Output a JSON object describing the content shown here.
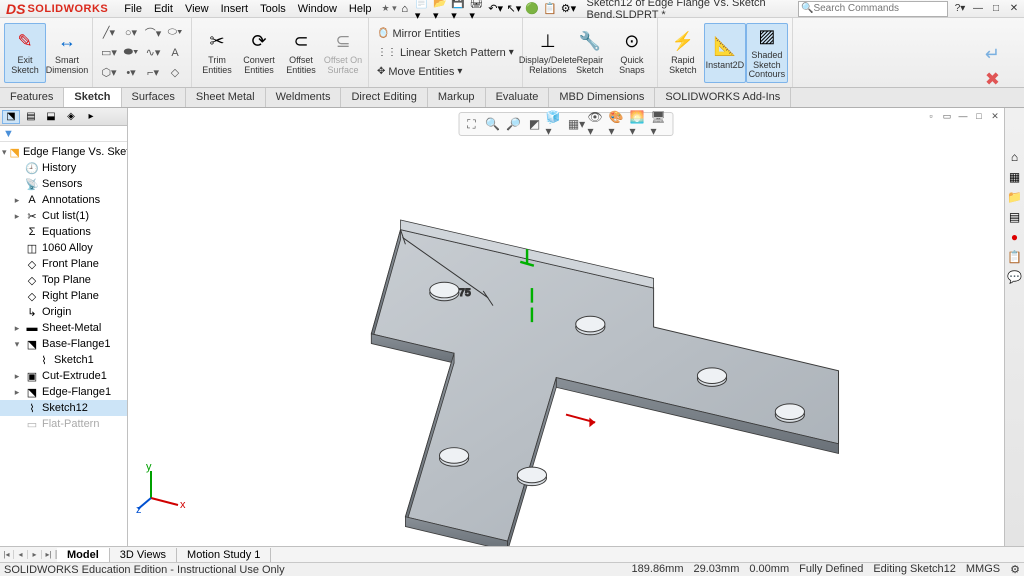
{
  "app": {
    "logo_symbol": "DS",
    "logo_text": "SOLIDWORKS"
  },
  "menu": [
    "File",
    "Edit",
    "View",
    "Insert",
    "Tools",
    "Window",
    "Help"
  ],
  "doc_title": "Sketch12 of Edge Flange Vs. Sketch Bend.SLDPRT *",
  "search_placeholder": "Search Commands",
  "ribbon": {
    "exit_sketch": "Exit\nSketch",
    "smart_dim": "Smart\nDimension",
    "trim": "Trim\nEntities",
    "convert": "Convert\nEntities",
    "offset": "Offset\nEntities",
    "offset_surf": "Offset\nOn\nSurface",
    "mirror": "Mirror Entities",
    "linear": "Linear Sketch Pattern",
    "move": "Move Entities",
    "display": "Display/Delete\nRelations",
    "repair": "Repair\nSketch",
    "quick": "Quick\nSnaps",
    "rapid": "Rapid\nSketch",
    "instant": "Instant2D",
    "shaded": "Shaded\nSketch\nContours"
  },
  "tabs": [
    "Features",
    "Sketch",
    "Surfaces",
    "Sheet Metal",
    "Weldments",
    "Direct Editing",
    "Markup",
    "Evaluate",
    "MBD Dimensions",
    "SOLIDWORKS Add-Ins"
  ],
  "active_tab": "Sketch",
  "tree": {
    "root": "Edge Flange Vs. Sketch Ben",
    "nodes": [
      {
        "label": "History",
        "ico": "🕘",
        "l": 1
      },
      {
        "label": "Sensors",
        "ico": "📡",
        "l": 1
      },
      {
        "label": "Annotations",
        "ico": "A",
        "l": 1,
        "exp": "▸"
      },
      {
        "label": "Cut list(1)",
        "ico": "✂",
        "l": 1,
        "exp": "▸"
      },
      {
        "label": "Equations",
        "ico": "Σ",
        "l": 1
      },
      {
        "label": "1060 Alloy",
        "ico": "◫",
        "l": 1
      },
      {
        "label": "Front Plane",
        "ico": "◇",
        "l": 1
      },
      {
        "label": "Top Plane",
        "ico": "◇",
        "l": 1
      },
      {
        "label": "Right Plane",
        "ico": "◇",
        "l": 1
      },
      {
        "label": "Origin",
        "ico": "↳",
        "l": 1
      },
      {
        "label": "Sheet-Metal",
        "ico": "▬",
        "l": 1,
        "exp": "▸"
      },
      {
        "label": "Base-Flange1",
        "ico": "⬔",
        "l": 1,
        "exp": "▾"
      },
      {
        "label": "Sketch1",
        "ico": "⌇",
        "l": 2
      },
      {
        "label": "Cut-Extrude1",
        "ico": "▣",
        "l": 1,
        "exp": "▸"
      },
      {
        "label": "Edge-Flange1",
        "ico": "⬔",
        "l": 1,
        "exp": "▸"
      },
      {
        "label": "Sketch12",
        "ico": "⌇",
        "l": 1,
        "sel": true
      },
      {
        "label": "Flat-Pattern",
        "ico": "▭",
        "l": 1,
        "dim": true
      }
    ]
  },
  "dimension": "75",
  "bottom_tabs": [
    "Model",
    "3D Views",
    "Motion Study 1"
  ],
  "active_bottom": "Model",
  "status": {
    "left": "SOLIDWORKS Education Edition - Instructional Use Only",
    "coords": [
      "189.86mm",
      "29.03mm",
      "0.00mm"
    ],
    "defined": "Fully Defined",
    "editing": "Editing Sketch12",
    "units": "MMGS"
  },
  "colors": {
    "part": "#b8bec4",
    "part_dark": "#8a9199",
    "edge": "#3a3a3a",
    "green": "#00c000",
    "red": "#d00000",
    "blue": "#0050d0"
  }
}
